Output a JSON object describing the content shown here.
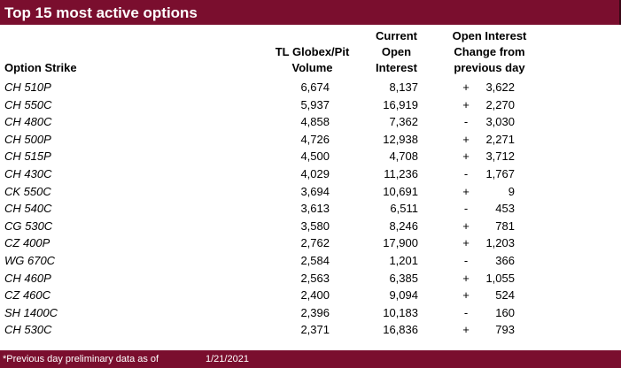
{
  "title": "Top 15 most active options",
  "headers": {
    "strike": "Option Strike",
    "volume": [
      "TL Globex/Pit",
      "Volume"
    ],
    "open_interest": [
      "Current",
      "Open",
      "Interest"
    ],
    "change": [
      "Open Interest",
      "Change from",
      "previous day"
    ]
  },
  "rows": [
    {
      "strike": "CH 510P",
      "volume": "6,674",
      "oi": "8,137",
      "sign": "+",
      "change": "3,622"
    },
    {
      "strike": "CH 550C",
      "volume": "5,937",
      "oi": "16,919",
      "sign": "+",
      "change": "2,270"
    },
    {
      "strike": "CH 480C",
      "volume": "4,858",
      "oi": "7,362",
      "sign": "-",
      "change": "3,030"
    },
    {
      "strike": "CH 500P",
      "volume": "4,726",
      "oi": "12,938",
      "sign": "+",
      "change": "2,271"
    },
    {
      "strike": "CH 515P",
      "volume": "4,500",
      "oi": "4,708",
      "sign": "+",
      "change": "3,712"
    },
    {
      "strike": "CH 430C",
      "volume": "4,029",
      "oi": "11,236",
      "sign": "-",
      "change": "1,767"
    },
    {
      "strike": "CK 550C",
      "volume": "3,694",
      "oi": "10,691",
      "sign": "+",
      "change": "9"
    },
    {
      "strike": "CH 540C",
      "volume": "3,613",
      "oi": "6,511",
      "sign": "-",
      "change": "453"
    },
    {
      "strike": "CG 530C",
      "volume": "3,580",
      "oi": "8,246",
      "sign": "+",
      "change": "781"
    },
    {
      "strike": "CZ 400P",
      "volume": "2,762",
      "oi": "17,900",
      "sign": "+",
      "change": "1,203"
    },
    {
      "strike": "WG 670C",
      "volume": "2,584",
      "oi": "1,201",
      "sign": "-",
      "change": "366"
    },
    {
      "strike": "CH 460P",
      "volume": "2,563",
      "oi": "6,385",
      "sign": "+",
      "change": "1,055"
    },
    {
      "strike": "CZ 460C",
      "volume": "2,400",
      "oi": "9,094",
      "sign": "+",
      "change": "524"
    },
    {
      "strike": "SH 1400C",
      "volume": "2,396",
      "oi": "10,183",
      "sign": "-",
      "change": "160"
    },
    {
      "strike": "CH 530C",
      "volume": "2,371",
      "oi": "16,836",
      "sign": "+",
      "change": "793"
    }
  ],
  "footer": {
    "note": "*Previous day preliminary data as of",
    "date": "1/21/2021"
  },
  "colors": {
    "brand": "#7a0e2e"
  }
}
